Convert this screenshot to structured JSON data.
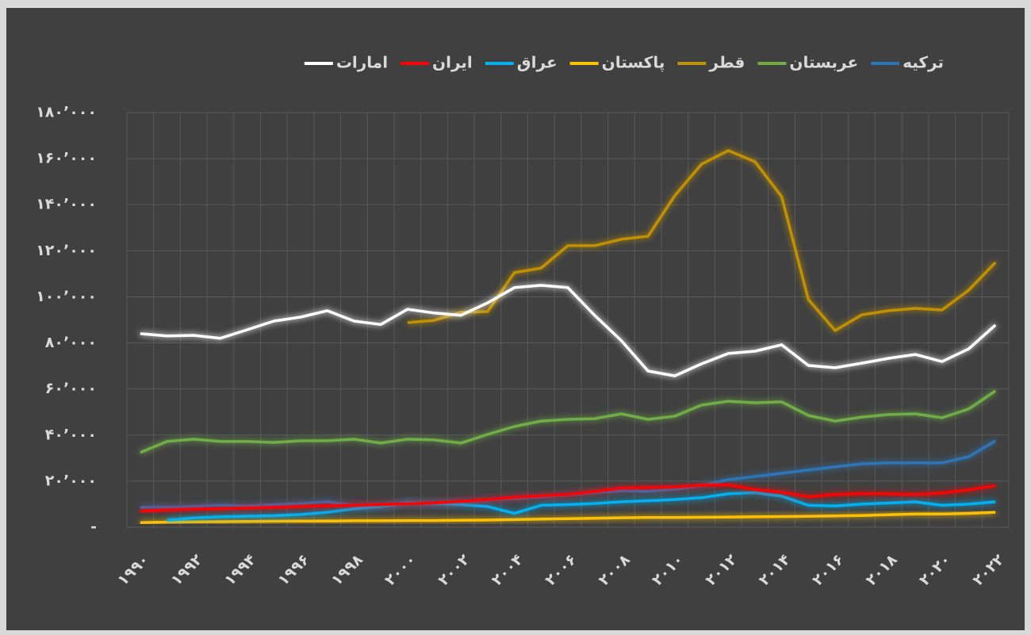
{
  "chart_data": {
    "type": "line",
    "categories": [
      "۱۹۹۰",
      null,
      "۱۹۹۲",
      null,
      "۱۹۹۴",
      null,
      "۱۹۹۶",
      null,
      "۱۹۹۸",
      null,
      "۲۰۰۰",
      null,
      "۲۰۰۲",
      null,
      "۲۰۰۴",
      null,
      "۲۰۰۶",
      null,
      "۲۰۰۸",
      null,
      "۲۰۱۰",
      null,
      "۲۰۱۲",
      null,
      "۲۰۱۴",
      null,
      "۲۰۱۶",
      null,
      "۲۰۱۸",
      null,
      "۲۰۲۰",
      null,
      "۲۰۲۲"
    ],
    "series": [
      {
        "name": "ترکیه",
        "color": "#2e75b6",
        "values": [
          8600,
          8700,
          9000,
          9500,
          9200,
          9800,
          10300,
          11000,
          9500,
          9000,
          10700,
          10000,
          11000,
          11800,
          12500,
          13100,
          14000,
          15000,
          15800,
          15600,
          16500,
          18000,
          20600,
          22000,
          23400,
          24800,
          26200,
          27500,
          27900,
          27900,
          27900,
          30600,
          37500
        ]
      },
      {
        "name": "عربستان",
        "color": "#70ad47",
        "values": [
          32400,
          37200,
          38200,
          37200,
          37200,
          36800,
          37500,
          37500,
          38200,
          36500,
          38200,
          37900,
          36500,
          40300,
          43700,
          46100,
          46800,
          47100,
          49200,
          46800,
          48200,
          53000,
          54700,
          54000,
          54400,
          48500,
          46100,
          47800,
          48900,
          49200,
          47500,
          51300,
          59200
        ]
      },
      {
        "name": "قطر",
        "color": "#bf9000",
        "values": [
          null,
          null,
          null,
          null,
          null,
          null,
          null,
          null,
          null,
          null,
          88800,
          89800,
          93300,
          93600,
          110500,
          112500,
          122200,
          122200,
          125000,
          126300,
          143900,
          157600,
          163500,
          158700,
          143500,
          98800,
          85400,
          92200,
          94000,
          95000,
          94300,
          102900,
          115000
        ]
      },
      {
        "name": "پاکستان",
        "color": "#ffc000",
        "values": [
          2000,
          2200,
          2300,
          2400,
          2500,
          2600,
          2700,
          2700,
          2800,
          2800,
          2900,
          2900,
          3000,
          3100,
          3300,
          3500,
          3700,
          3900,
          4100,
          4200,
          4200,
          4300,
          4400,
          4500,
          4600,
          4700,
          4900,
          5100,
          5400,
          5700,
          5700,
          6000,
          6500
        ]
      },
      {
        "name": "عراق",
        "color": "#00b0f0",
        "values": [
          null,
          3000,
          4000,
          4500,
          4800,
          5000,
          5500,
          6500,
          8000,
          9000,
          10500,
          10300,
          9800,
          9000,
          6000,
          9500,
          9800,
          10300,
          11000,
          11500,
          12000,
          12800,
          14500,
          15000,
          13500,
          9500,
          9200,
          10000,
          10500,
          11000,
          9500,
          10000,
          11000
        ]
      },
      {
        "name": "ایران",
        "color": "#ff0000",
        "values": [
          7000,
          7500,
          7800,
          8000,
          8300,
          8600,
          9000,
          9300,
          9500,
          9800,
          10200,
          10500,
          11200,
          12000,
          13000,
          13600,
          14200,
          15500,
          17000,
          17200,
          17400,
          18200,
          18400,
          16300,
          15200,
          13200,
          14200,
          14600,
          14500,
          14200,
          14800,
          16200,
          18000
        ]
      },
      {
        "name": "امارات",
        "color": "#ffffff",
        "values": [
          84000,
          83000,
          83300,
          82000,
          85700,
          89500,
          91200,
          94000,
          89500,
          88000,
          94600,
          93000,
          92000,
          97400,
          104000,
          105000,
          104000,
          92000,
          81000,
          67800,
          65700,
          70900,
          75400,
          76400,
          79200,
          70200,
          69200,
          71200,
          73300,
          75000,
          71900,
          77400,
          87800
        ]
      }
    ],
    "ylim": [
      0,
      180000
    ],
    "yticks": [
      {
        "value": 0,
        "label": "-"
      },
      {
        "value": 20000,
        "label": "۲۰’۰۰۰"
      },
      {
        "value": 40000,
        "label": "۴۰’۰۰۰"
      },
      {
        "value": 60000,
        "label": "۶۰’۰۰۰"
      },
      {
        "value": 80000,
        "label": "۸۰’۰۰۰"
      },
      {
        "value": 100000,
        "label": "۱۰۰’۰۰۰"
      },
      {
        "value": 120000,
        "label": "۱۲۰’۰۰۰"
      },
      {
        "value": 140000,
        "label": "۱۴۰’۰۰۰"
      },
      {
        "value": 160000,
        "label": "۱۶۰’۰۰۰"
      },
      {
        "value": 180000,
        "label": "۱۸۰’۰۰۰"
      }
    ],
    "grid": true
  }
}
